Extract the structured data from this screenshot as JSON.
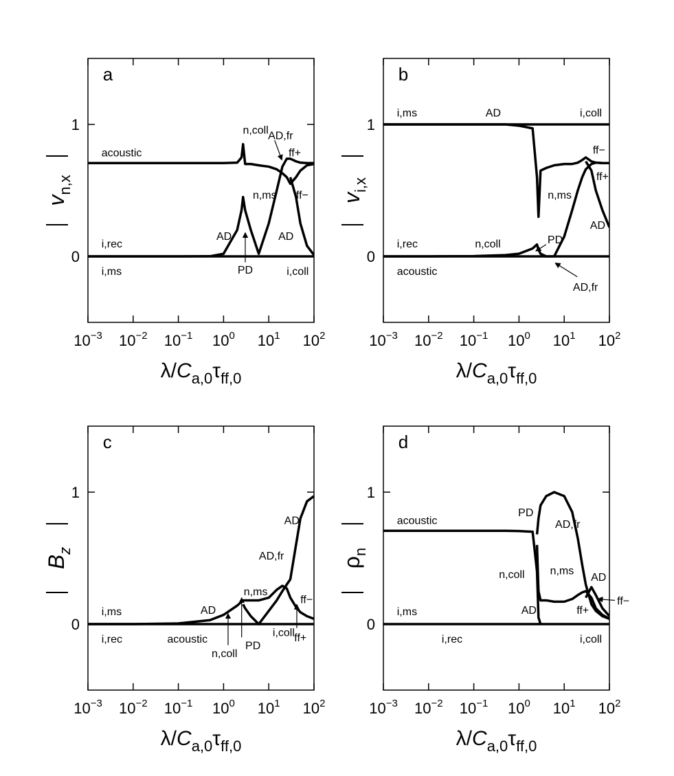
{
  "chart_data": [
    {
      "type": "line",
      "panel": "a",
      "xscale": "log",
      "xlabel": [
        "λ/",
        "C",
        "a,0",
        "τ",
        "ff,0"
      ],
      "ylabel": {
        "symbol": "v",
        "subscript": "n,x"
      },
      "x": [
        0.001,
        0.01,
        0.1,
        0.5,
        1,
        2,
        2.5,
        2.7,
        3,
        4,
        6,
        10,
        15,
        20,
        25,
        30,
        40,
        50,
        70,
        100
      ],
      "series": [
        {
          "color": "#000000",
          "values": [
            0.707,
            0.707,
            0.707,
            0.707,
            0.707,
            0.71,
            0.75,
            0.85,
            0.7,
            0.7,
            0.69,
            0.68,
            0.66,
            0.63,
            0.6,
            0.55,
            0.6,
            0.65,
            0.69,
            0.7
          ]
        },
        {
          "color": "#000000",
          "values": [
            0,
            0,
            0,
            0.001,
            0.02,
            0.2,
            0.35,
            0.45,
            0.35,
            0.2,
            0.02,
            0.25,
            0.5,
            0.68,
            0.74,
            0.74,
            0.72,
            0.71,
            0.707,
            0.707
          ]
        },
        {
          "color": "#000000",
          "values": [
            null,
            null,
            null,
            null,
            null,
            null,
            null,
            null,
            null,
            null,
            null,
            null,
            null,
            null,
            null,
            0.6,
            0.45,
            0.25,
            0.08,
            0.01
          ]
        },
        {
          "color": "#000000",
          "values": [
            0,
            0,
            0,
            0,
            0,
            0,
            0,
            0,
            0,
            0,
            0,
            0,
            0,
            0,
            0,
            0,
            0,
            0,
            0,
            0
          ]
        }
      ],
      "xlim": [
        0.001,
        100
      ],
      "xticks": [
        {
          "value": 0.001,
          "label": "10−3"
        },
        {
          "value": 0.01,
          "label": "10−2"
        },
        {
          "value": 0.1,
          "label": "10−1"
        },
        {
          "value": 1,
          "label": "100"
        },
        {
          "value": 10,
          "label": "101"
        },
        {
          "value": 100,
          "label": "102"
        }
      ],
      "ylim": [
        -0.5,
        1.5
      ],
      "yticks": [
        0,
        1
      ],
      "annotations": [
        "acoustic",
        "n,coll",
        "AD,fr",
        "ff+",
        "n,ms",
        "ff−",
        "i,rec",
        "AD",
        "PD",
        "AD",
        "i,ms",
        "i,coll"
      ]
    },
    {
      "type": "line",
      "panel": "b",
      "xscale": "log",
      "xlabel": [
        "λ/",
        "C",
        "a,0",
        "τ",
        "ff,0"
      ],
      "ylabel": {
        "symbol": "v",
        "subscript": "i,x"
      },
      "x": [
        0.001,
        0.01,
        0.1,
        0.5,
        1,
        2,
        2.5,
        2.7,
        3,
        4,
        6,
        10,
        15,
        20,
        25,
        30,
        40,
        50,
        70,
        100
      ],
      "series": [
        {
          "color": "#000000",
          "values": [
            1,
            1,
            1,
            1,
            1,
            1,
            1,
            1,
            1,
            1,
            1,
            1,
            1,
            1,
            1,
            1,
            1,
            1,
            1,
            1
          ]
        },
        {
          "color": "#000000",
          "values": [
            1,
            1,
            1,
            1,
            0.99,
            0.97,
            0.6,
            0.3,
            0.65,
            0.67,
            0.69,
            0.7,
            0.7,
            0.71,
            0.73,
            0.75,
            0.72,
            0.71,
            0.707,
            0.707
          ]
        },
        {
          "color": "#000000",
          "values": [
            0,
            0,
            0.002,
            0.01,
            0.02,
            0.06,
            0.09,
            0.05,
            0.02,
            0,
            0,
            0.15,
            0.35,
            0.5,
            0.6,
            0.66,
            0.7,
            0.71,
            0.707,
            0.707
          ]
        },
        {
          "color": "#000000",
          "values": [
            null,
            null,
            null,
            null,
            null,
            null,
            null,
            null,
            null,
            null,
            null,
            null,
            null,
            null,
            null,
            0.72,
            0.65,
            0.5,
            0.35,
            0.22
          ]
        },
        {
          "color": "#000000",
          "values": [
            0,
            0,
            0,
            0,
            0,
            0,
            0,
            0,
            0,
            0,
            0,
            0,
            0,
            0,
            0,
            0,
            0,
            0,
            0,
            0
          ]
        }
      ],
      "xlim": [
        0.001,
        100
      ],
      "xticks": [
        {
          "value": 0.001,
          "label": "10−3"
        },
        {
          "value": 0.01,
          "label": "10−2"
        },
        {
          "value": 0.1,
          "label": "10−1"
        },
        {
          "value": 1,
          "label": "100"
        },
        {
          "value": 10,
          "label": "101"
        },
        {
          "value": 100,
          "label": "102"
        }
      ],
      "ylim": [
        -0.5,
        1.5
      ],
      "yticks": [
        0,
        1
      ],
      "annotations": [
        "i,ms",
        "AD",
        "i,coll",
        "ff−",
        "n,ms",
        "ff+",
        "AD",
        "i,rec",
        "n,coll",
        "PD",
        "AD,fr",
        "acoustic"
      ]
    },
    {
      "type": "line",
      "panel": "c",
      "xscale": "log",
      "xlabel": [
        "λ/",
        "C",
        "a,0",
        "τ",
        "ff,0"
      ],
      "ylabel": {
        "symbol": "B",
        "subscript": "z"
      },
      "x": [
        0.001,
        0.01,
        0.1,
        0.5,
        1,
        2,
        2.5,
        2.7,
        3,
        4,
        6,
        10,
        15,
        20,
        25,
        30,
        40,
        50,
        70,
        100
      ],
      "series": [
        {
          "color": "#000000",
          "values": [
            0,
            0,
            0,
            0,
            0,
            0,
            0,
            0,
            0,
            0,
            0,
            0,
            0,
            0,
            0,
            0,
            0,
            0,
            0,
            0
          ]
        },
        {
          "color": "#000000",
          "values": [
            0,
            0,
            0.005,
            0.03,
            0.07,
            0.14,
            0.17,
            0.18,
            0.18,
            0.18,
            0.18,
            0.2,
            0.26,
            0.29,
            0.27,
            0.2,
            0.13,
            0.09,
            0.06,
            0.04
          ]
        },
        {
          "color": "#000000",
          "values": [
            null,
            null,
            null,
            null,
            null,
            null,
            null,
            0.15,
            0.12,
            0.06,
            0,
            0.1,
            0.18,
            0.25,
            0.3,
            0.34,
            0.6,
            0.8,
            0.93,
            0.97
          ]
        }
      ],
      "xlim": [
        0.001,
        100
      ],
      "xticks": [
        {
          "value": 0.001,
          "label": "10−3"
        },
        {
          "value": 0.01,
          "label": "10−2"
        },
        {
          "value": 0.1,
          "label": "10−1"
        },
        {
          "value": 1,
          "label": "100"
        },
        {
          "value": 10,
          "label": "101"
        },
        {
          "value": 100,
          "label": "102"
        }
      ],
      "ylim": [
        -0.5,
        1.5
      ],
      "yticks": [
        0,
        1
      ],
      "annotations": [
        "i,ms",
        "i,rec",
        "AD",
        "acoustic",
        "n,coll",
        "PD",
        "n,ms",
        "i,coll",
        "AD,fr",
        "AD",
        "ff−",
        "ff+"
      ]
    },
    {
      "type": "line",
      "panel": "d",
      "xscale": "log",
      "xlabel": [
        "λ/",
        "C",
        "a,0",
        "τ",
        "ff,0"
      ],
      "ylabel": {
        "symbol": "ρ",
        "subscript": "n"
      },
      "x": [
        0.001,
        0.01,
        0.1,
        0.5,
        1,
        2,
        2.5,
        2.7,
        3,
        4,
        6,
        10,
        15,
        20,
        25,
        30,
        40,
        50,
        70,
        100
      ],
      "series": [
        {
          "color": "#000000",
          "values": [
            0.707,
            0.707,
            0.707,
            0.707,
            0.705,
            0.7,
            0.4,
            0.05,
            0,
            null,
            null,
            null,
            null,
            null,
            null,
            null,
            null,
            null,
            null,
            null
          ]
        },
        {
          "color": "#000000",
          "values": [
            null,
            null,
            null,
            null,
            null,
            null,
            0.68,
            0.8,
            0.9,
            0.97,
            1,
            0.97,
            0.85,
            0.65,
            0.45,
            0.3,
            0.15,
            0.1,
            0.06,
            0.04
          ]
        },
        {
          "color": "#000000",
          "values": [
            null,
            null,
            null,
            null,
            null,
            null,
            0.6,
            0.25,
            0.18,
            0.18,
            0.17,
            0.17,
            0.19,
            0.22,
            0.24,
            0.25,
            0.2,
            0.12,
            0.07,
            0.04
          ]
        },
        {
          "color": "#000000",
          "values": [
            null,
            null,
            null,
            null,
            null,
            null,
            null,
            null,
            null,
            null,
            null,
            null,
            null,
            null,
            null,
            0.2,
            0.28,
            0.22,
            0.12,
            0.06
          ]
        },
        {
          "color": "#000000",
          "values": [
            0,
            0,
            0,
            0,
            0,
            0,
            0,
            0,
            0,
            0,
            0,
            0,
            0,
            0,
            0,
            0,
            0,
            0,
            0,
            0
          ]
        }
      ],
      "xlim": [
        0.001,
        100
      ],
      "xticks": [
        {
          "value": 0.001,
          "label": "10−3"
        },
        {
          "value": 0.01,
          "label": "10−2"
        },
        {
          "value": 0.1,
          "label": "10−1"
        },
        {
          "value": 1,
          "label": "100"
        },
        {
          "value": 10,
          "label": "101"
        },
        {
          "value": 100,
          "label": "102"
        }
      ],
      "ylim": [
        -0.5,
        1.5
      ],
      "yticks": [
        0,
        1
      ],
      "annotations": [
        "acoustic",
        "PD",
        "AD,fr",
        "n,coll",
        "n,ms",
        "AD",
        "ff−",
        "ff+",
        "AD",
        "i,ms",
        "i,rec",
        "i,coll"
      ]
    }
  ]
}
